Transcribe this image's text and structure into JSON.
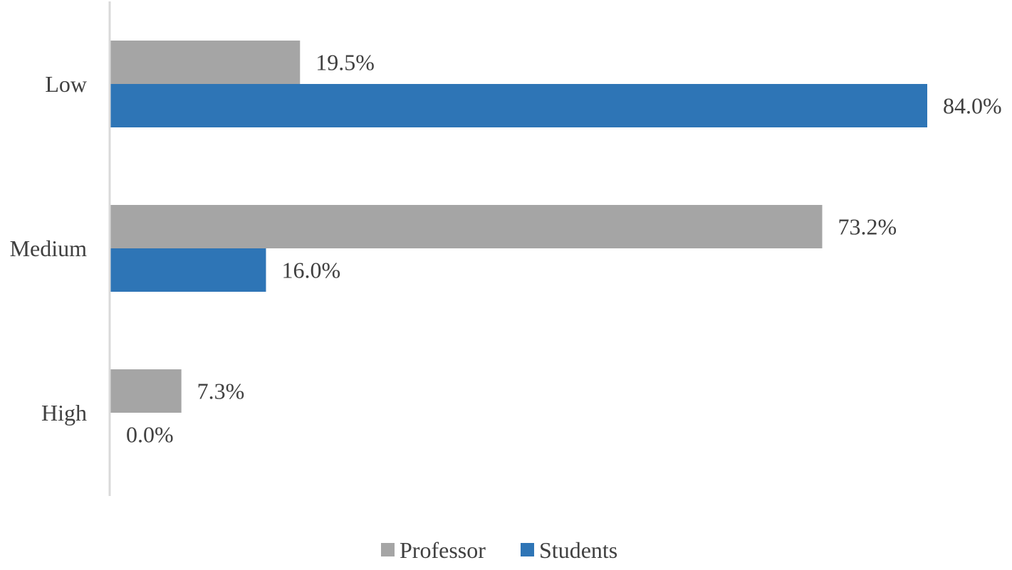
{
  "chart_data": {
    "type": "bar",
    "orientation": "horizontal",
    "categories": [
      "Low",
      "Medium",
      "High"
    ],
    "series": [
      {
        "name": "Professor",
        "values": [
          19.5,
          73.2,
          7.3
        ],
        "labels": [
          "19.5%",
          "73.2%",
          "7.3%"
        ],
        "color": "#a5a5a5"
      },
      {
        "name": "Students",
        "values": [
          84.0,
          16.0,
          0.0
        ],
        "labels": [
          "84.0%",
          "16.0%",
          "0.0%"
        ],
        "color": "#2e75b6"
      }
    ],
    "title": "",
    "xlabel": "",
    "ylabel": "",
    "xlim": [
      0,
      84
    ],
    "grid": false,
    "legend_position": "bottom"
  }
}
